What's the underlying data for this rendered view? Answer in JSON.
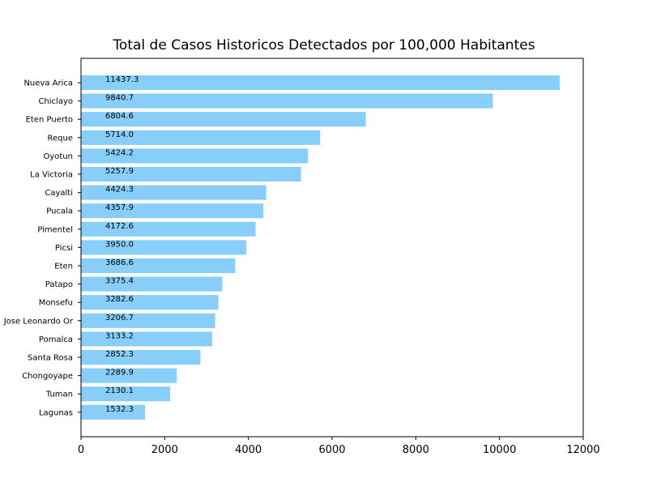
{
  "chart_data": {
    "type": "bar",
    "orientation": "horizontal",
    "title": "Total de Casos Historicos Detectados por 100,000 Habitantes",
    "xlabel": "",
    "ylabel": "",
    "bar_color": "#87cefa",
    "xlim": [
      0,
      12000
    ],
    "xticks": [
      0,
      2000,
      4000,
      6000,
      8000,
      10000,
      12000
    ],
    "xtick_labels": [
      "0",
      "2000",
      "4000",
      "6000",
      "8000",
      "10000",
      "12000"
    ],
    "grid": false,
    "categories": [
      "Nueva Arica",
      "Chiclayo",
      "Eten Puerto",
      "Reque",
      "Oyotun",
      "La Victoria",
      "Cayalti",
      "Pucala",
      "Pimentel",
      "Picsi",
      "Eten",
      "Patapo",
      "Monsefu",
      "Jose Leonardo Or",
      "Pomalca",
      "Santa Rosa",
      "Chongoyape",
      "Tuman",
      "Lagunas"
    ],
    "values": [
      11437.3,
      9840.7,
      6804.6,
      5714.0,
      5424.2,
      5257.9,
      4424.3,
      4357.9,
      4172.6,
      3950.0,
      3686.6,
      3375.4,
      3282.6,
      3206.7,
      3133.2,
      2852.3,
      2289.9,
      2130.1,
      1532.3
    ],
    "value_labels": [
      "11437.3",
      "9840.7",
      "6804.6",
      "5714.0",
      "5424.2",
      "5257.9",
      "4424.3",
      "4357.9",
      "4172.6",
      "3950.0",
      "3686.6",
      "3375.4",
      "3282.6",
      "3206.7",
      "3133.2",
      "2852.3",
      "2289.9",
      "2130.1",
      "1532.3"
    ],
    "value_label_anchor": 580
  }
}
